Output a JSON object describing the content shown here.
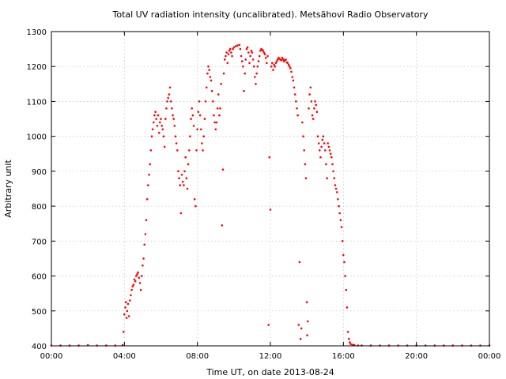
{
  "chart_data": {
    "type": "scatter",
    "title": "Total UV radiation intensity (uncalibrated). Metsähovi Radio Observatory",
    "xlabel": "Time UT, on date 2013-08-24",
    "ylabel": "Arbitrary unit",
    "xlim_hours": [
      0,
      24
    ],
    "ylim": [
      400,
      1300
    ],
    "x_tick_labels": [
      "00:00",
      "04:00",
      "08:00",
      "12:00",
      "16:00",
      "20:00",
      "00:00"
    ],
    "y_tick_labels": [
      "400",
      "500",
      "600",
      "700",
      "800",
      "900",
      "1000",
      "1100",
      "1200",
      "1300"
    ],
    "grid": true,
    "marker_color": "#ff0000",
    "series": [
      {
        "points": [
          [
            0.0,
            401
          ],
          [
            0.5,
            401
          ],
          [
            1.0,
            401
          ],
          [
            1.5,
            401
          ],
          [
            2.0,
            402
          ],
          [
            2.5,
            401
          ],
          [
            3.0,
            401
          ],
          [
            3.5,
            401
          ],
          [
            3.9,
            402
          ],
          [
            3.95,
            440
          ],
          [
            4.0,
            490
          ],
          [
            4.05,
            510
          ],
          [
            4.08,
            525
          ],
          [
            4.12,
            480
          ],
          [
            4.15,
            500
          ],
          [
            4.2,
            520
          ],
          [
            4.25,
            485
          ],
          [
            4.3,
            530
          ],
          [
            4.35,
            545
          ],
          [
            4.4,
            560
          ],
          [
            4.45,
            570
          ],
          [
            4.5,
            575
          ],
          [
            4.55,
            590
          ],
          [
            4.6,
            585
          ],
          [
            4.65,
            600
          ],
          [
            4.7,
            605
          ],
          [
            4.75,
            610
          ],
          [
            4.8,
            595
          ],
          [
            4.85,
            580
          ],
          [
            4.9,
            560
          ],
          [
            4.95,
            600
          ],
          [
            5.0,
            630
          ],
          [
            5.05,
            650
          ],
          [
            5.1,
            690
          ],
          [
            5.15,
            720
          ],
          [
            5.2,
            760
          ],
          [
            5.25,
            820
          ],
          [
            5.3,
            860
          ],
          [
            5.35,
            890
          ],
          [
            5.4,
            920
          ],
          [
            5.45,
            960
          ],
          [
            5.5,
            1000
          ],
          [
            5.55,
            1020
          ],
          [
            5.6,
            1040
          ],
          [
            5.65,
            1060
          ],
          [
            5.7,
            1070
          ],
          [
            5.75,
            1050
          ],
          [
            5.8,
            1030
          ],
          [
            5.85,
            1060
          ],
          [
            5.9,
            1010
          ],
          [
            5.95,
            1040
          ],
          [
            6.0,
            1050
          ],
          [
            6.05,
            1030
          ],
          [
            6.1,
            1020
          ],
          [
            6.15,
            1000
          ],
          [
            6.2,
            970
          ],
          [
            6.25,
            1050
          ],
          [
            6.3,
            1080
          ],
          [
            6.35,
            1100
          ],
          [
            6.4,
            1110
          ],
          [
            6.45,
            1120
          ],
          [
            6.5,
            1140
          ],
          [
            6.55,
            1100
          ],
          [
            6.6,
            1080
          ],
          [
            6.65,
            1060
          ],
          [
            6.7,
            1050
          ],
          [
            6.75,
            1030
          ],
          [
            6.8,
            1000
          ],
          [
            6.85,
            980
          ],
          [
            6.9,
            960
          ],
          [
            6.95,
            900
          ],
          [
            7.0,
            880
          ],
          [
            7.05,
            860
          ],
          [
            7.1,
            780
          ],
          [
            7.15,
            890
          ],
          [
            7.2,
            870
          ],
          [
            7.25,
            860
          ],
          [
            7.3,
            900
          ],
          [
            7.35,
            940
          ],
          [
            7.4,
            880
          ],
          [
            7.45,
            850
          ],
          [
            7.5,
            920
          ],
          [
            7.55,
            960
          ],
          [
            7.6,
            1000
          ],
          [
            7.65,
            1050
          ],
          [
            7.7,
            1080
          ],
          [
            7.75,
            1060
          ],
          [
            7.8,
            1030
          ],
          [
            7.85,
            820
          ],
          [
            7.9,
            800
          ],
          [
            7.95,
            960
          ],
          [
            8.0,
            1020
          ],
          [
            8.05,
            1070
          ],
          [
            8.1,
            1100
          ],
          [
            8.15,
            1060
          ],
          [
            8.2,
            1020
          ],
          [
            8.25,
            980
          ],
          [
            8.3,
            960
          ],
          [
            8.35,
            1000
          ],
          [
            8.4,
            1050
          ],
          [
            8.45,
            1100
          ],
          [
            8.5,
            1140
          ],
          [
            8.55,
            1180
          ],
          [
            8.6,
            1200
          ],
          [
            8.65,
            1190
          ],
          [
            8.7,
            1170
          ],
          [
            8.75,
            1160
          ],
          [
            8.8,
            1130
          ],
          [
            8.85,
            1100
          ],
          [
            8.9,
            1060
          ],
          [
            8.95,
            1040
          ],
          [
            9.0,
            1020
          ],
          [
            9.05,
            1040
          ],
          [
            9.1,
            1080
          ],
          [
            9.15,
            1120
          ],
          [
            9.2,
            1060
          ],
          [
            9.25,
            1080
          ],
          [
            9.3,
            1150
          ],
          [
            9.35,
            745
          ],
          [
            9.4,
            905
          ],
          [
            9.45,
            1180
          ],
          [
            9.5,
            1220
          ],
          [
            9.55,
            1230
          ],
          [
            9.6,
            1240
          ],
          [
            9.65,
            1210
          ],
          [
            9.7,
            1235
          ],
          [
            9.75,
            1245
          ],
          [
            9.8,
            1250
          ],
          [
            9.85,
            1240
          ],
          [
            9.9,
            1230
          ],
          [
            9.95,
            1250
          ],
          [
            10.0,
            1255
          ],
          [
            10.1,
            1258
          ],
          [
            10.2,
            1260
          ],
          [
            10.3,
            1262
          ],
          [
            10.35,
            1250
          ],
          [
            10.4,
            1230
          ],
          [
            10.45,
            1215
          ],
          [
            10.5,
            1200
          ],
          [
            10.55,
            1130
          ],
          [
            10.6,
            1180
          ],
          [
            10.65,
            1220
          ],
          [
            10.7,
            1250
          ],
          [
            10.75,
            1255
          ],
          [
            10.8,
            1240
          ],
          [
            10.85,
            1210
          ],
          [
            10.9,
            1230
          ],
          [
            10.95,
            1245
          ],
          [
            11.0,
            1240
          ],
          [
            11.05,
            1220
          ],
          [
            11.1,
            1200
          ],
          [
            11.15,
            1170
          ],
          [
            11.2,
            1150
          ],
          [
            11.25,
            1180
          ],
          [
            11.3,
            1200
          ],
          [
            11.35,
            1215
          ],
          [
            11.4,
            1230
          ],
          [
            11.45,
            1245
          ],
          [
            11.5,
            1250
          ],
          [
            11.55,
            1248
          ],
          [
            11.6,
            1245
          ],
          [
            11.65,
            1240
          ],
          [
            11.7,
            1235
          ],
          [
            11.75,
            1225
          ],
          [
            11.8,
            1210
          ],
          [
            11.85,
            1230
          ],
          [
            11.9,
            460
          ],
          [
            11.95,
            940
          ],
          [
            12.0,
            790
          ],
          [
            12.05,
            1200
          ],
          [
            12.1,
            1210
          ],
          [
            12.15,
            1190
          ],
          [
            12.2,
            1205
          ],
          [
            12.25,
            1200
          ],
          [
            12.3,
            1210
          ],
          [
            12.35,
            1215
          ],
          [
            12.4,
            1220
          ],
          [
            12.45,
            1225
          ],
          [
            12.5,
            1222
          ],
          [
            12.55,
            1220
          ],
          [
            12.6,
            1218
          ],
          [
            12.65,
            1225
          ],
          [
            12.7,
            1220
          ],
          [
            12.75,
            1215
          ],
          [
            12.8,
            1218
          ],
          [
            12.85,
            1220
          ],
          [
            12.9,
            1212
          ],
          [
            12.95,
            1210
          ],
          [
            13.0,
            1205
          ],
          [
            13.05,
            1200
          ],
          [
            13.1,
            1195
          ],
          [
            13.15,
            1185
          ],
          [
            13.2,
            1170
          ],
          [
            13.25,
            1160
          ],
          [
            13.3,
            1140
          ],
          [
            13.35,
            1120
          ],
          [
            13.4,
            1100
          ],
          [
            13.45,
            1080
          ],
          [
            13.5,
            1060
          ],
          [
            13.55,
            460
          ],
          [
            13.6,
            640
          ],
          [
            13.65,
            420
          ],
          [
            13.7,
            450
          ],
          [
            13.75,
            1040
          ],
          [
            13.8,
            1000
          ],
          [
            13.85,
            960
          ],
          [
            13.9,
            920
          ],
          [
            13.95,
            880
          ],
          [
            14.0,
            525
          ],
          [
            14.02,
            430
          ],
          [
            14.05,
            470
          ],
          [
            14.1,
            1080
          ],
          [
            14.15,
            1120
          ],
          [
            14.2,
            1140
          ],
          [
            14.25,
            1100
          ],
          [
            14.3,
            1060
          ],
          [
            14.35,
            1050
          ],
          [
            14.4,
            1080
          ],
          [
            14.45,
            1100
          ],
          [
            14.5,
            1090
          ],
          [
            14.55,
            1070
          ],
          [
            14.6,
            1000
          ],
          [
            14.65,
            980
          ],
          [
            14.7,
            960
          ],
          [
            14.75,
            940
          ],
          [
            14.8,
            970
          ],
          [
            14.85,
            990
          ],
          [
            14.9,
            1000
          ],
          [
            14.95,
            980
          ],
          [
            15.0,
            960
          ],
          [
            15.05,
            920
          ],
          [
            15.1,
            880
          ],
          [
            15.15,
            980
          ],
          [
            15.2,
            970
          ],
          [
            15.25,
            960
          ],
          [
            15.3,
            950
          ],
          [
            15.35,
            940
          ],
          [
            15.4,
            920
          ],
          [
            15.45,
            900
          ],
          [
            15.5,
            880
          ],
          [
            15.55,
            860
          ],
          [
            15.6,
            850
          ],
          [
            15.65,
            840
          ],
          [
            15.7,
            820
          ],
          [
            15.75,
            800
          ],
          [
            15.8,
            780
          ],
          [
            15.85,
            760
          ],
          [
            15.9,
            740
          ],
          [
            15.95,
            700
          ],
          [
            16.0,
            660
          ],
          [
            16.05,
            640
          ],
          [
            16.1,
            600
          ],
          [
            16.15,
            560
          ],
          [
            16.2,
            510
          ],
          [
            16.25,
            440
          ],
          [
            16.3,
            420
          ],
          [
            16.35,
            410
          ],
          [
            16.4,
            405
          ],
          [
            16.5,
            403
          ],
          [
            16.6,
            402
          ],
          [
            16.8,
            401
          ],
          [
            17.0,
            401
          ],
          [
            17.5,
            401
          ],
          [
            18.0,
            401
          ],
          [
            18.5,
            401
          ],
          [
            19.0,
            401
          ],
          [
            19.5,
            401
          ],
          [
            20.0,
            401
          ],
          [
            20.5,
            401
          ],
          [
            21.0,
            401
          ],
          [
            21.5,
            401
          ],
          [
            22.0,
            401
          ],
          [
            22.5,
            401
          ],
          [
            23.0,
            401
          ],
          [
            23.5,
            401
          ],
          [
            24.0,
            401
          ]
        ]
      }
    ]
  }
}
